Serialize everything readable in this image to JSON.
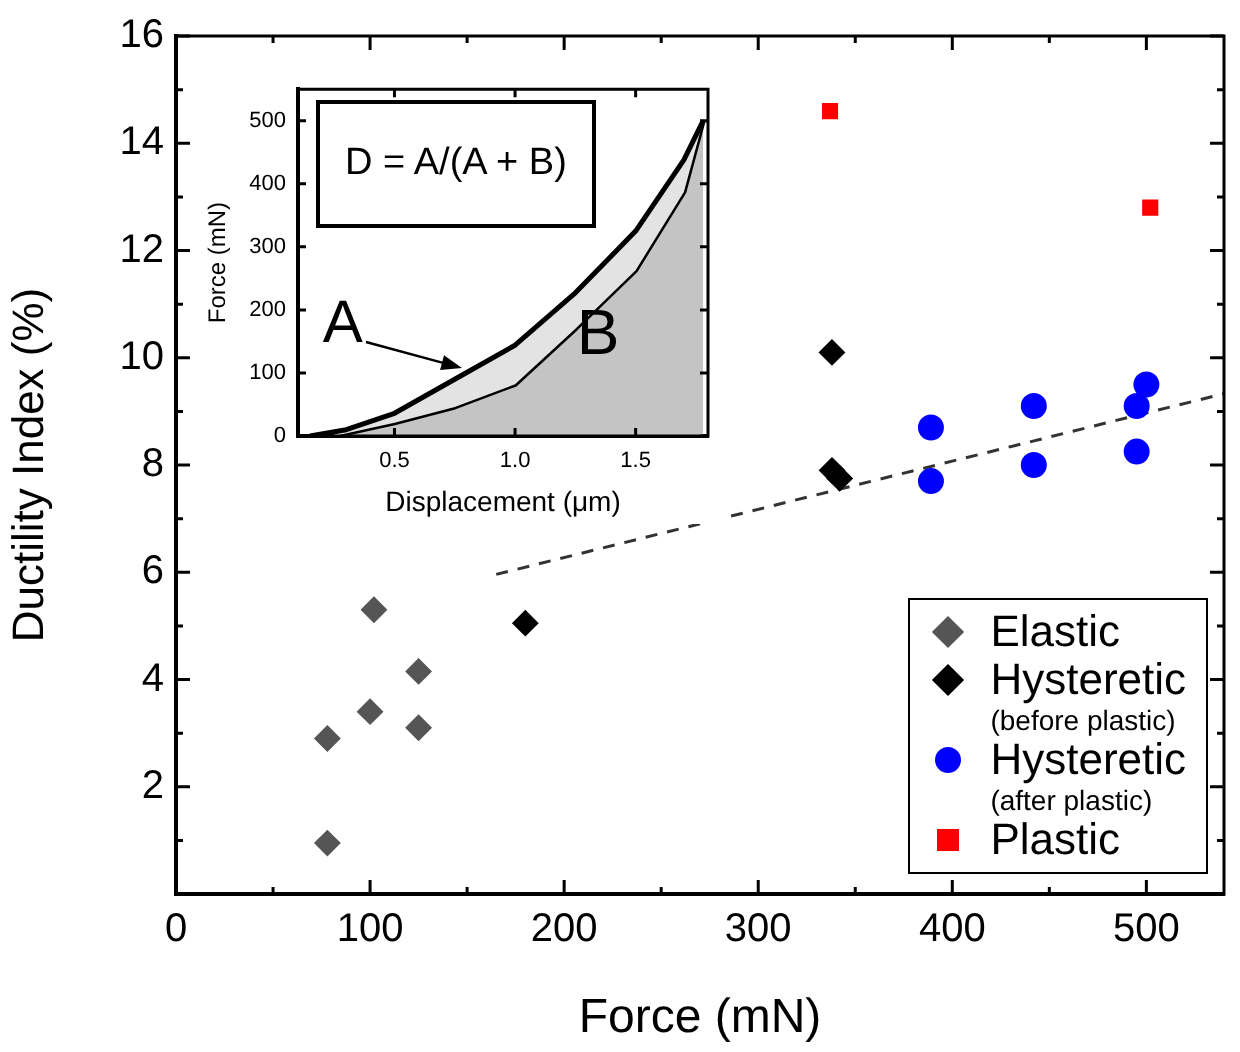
{
  "chart_data": [
    {
      "type": "scatter",
      "xlabel": "Force (mN)",
      "ylabel": "Ductility Index (%)",
      "xlim": [
        0,
        540
      ],
      "ylim": [
        0,
        16
      ],
      "xticks": [
        0,
        {
          "value": 50,
          "label": null
        },
        100,
        {
          "value": 150,
          "label": null
        },
        200,
        {
          "value": 250,
          "label": null
        },
        300,
        {
          "value": 350,
          "label": null
        },
        400,
        {
          "value": 450,
          "label": null
        },
        500
      ],
      "yticks": [
        {
          "value": 1,
          "label": null
        },
        2,
        {
          "value": 3,
          "label": null
        },
        4,
        {
          "value": 5,
          "label": null
        },
        6,
        {
          "value": 7,
          "label": null
        },
        8,
        {
          "value": 9,
          "label": null
        },
        10,
        {
          "value": 11,
          "label": null
        },
        12,
        {
          "value": 13,
          "label": null
        },
        14,
        {
          "value": 15,
          "label": null
        },
        16
      ],
      "grid": false,
      "legend": "bottom right",
      "series": [
        {
          "name": "Elastic",
          "color": "#555555",
          "marker": "diamond",
          "x": [
            78,
            78,
            100,
            102,
            125,
            125
          ],
          "values": [
            2.9,
            0.95,
            3.4,
            5.3,
            4.15,
            3.1
          ]
        },
        {
          "name": "Hysteretic (before plastic)",
          "color": "#000000",
          "marker": "diamond",
          "x": [
            180,
            338,
            338,
            342
          ],
          "values": [
            5.05,
            10.1,
            7.9,
            7.75
          ]
        },
        {
          "name": "Hysteretic (after plastic)",
          "color": "#0000ff",
          "marker": "circle",
          "x": [
            389,
            389,
            442,
            442,
            495,
            495,
            500
          ],
          "values": [
            8.7,
            7.7,
            9.1,
            8.0,
            9.1,
            8.25,
            9.5
          ]
        },
        {
          "name": "Plastic",
          "color": "#ff0000",
          "marker": "square",
          "x": [
            337,
            502
          ],
          "values": [
            14.6,
            12.8
          ]
        },
        {
          "type": "line",
          "color": "#333333",
          "line_style": "dashed",
          "marker": "none",
          "x": [
            165,
            540
          ],
          "values": [
            5.96,
            9.33
          ]
        }
      ]
    },
    {
      "type": "area",
      "xlabel": "Displacement (μm)",
      "ylabel": "Force (mN)",
      "xlim": [
        0.1,
        1.8
      ],
      "ylim": [
        0,
        550
      ],
      "xticks": [
        0.5,
        {
          "value": 1,
          "label": "1.0"
        },
        1.5
      ],
      "yticks": [
        0,
        100,
        200,
        300,
        400,
        500
      ],
      "grid": false,
      "series": [
        {
          "color": "#e3e3e3",
          "x": [
            0.15,
            0.3,
            0.5,
            0.75,
            1.0,
            1.25,
            1.5,
            1.7,
            1.78
          ],
          "values": [
            0,
            10,
            36,
            90,
            144,
            227,
            325,
            438,
            500
          ]
        },
        {
          "color": "#c4c4c4",
          "x": [
            0.25,
            0.5,
            0.75,
            1.0,
            1.25,
            1.5,
            1.7,
            1.78
          ],
          "values": [
            0,
            21,
            46,
            82,
            170,
            263,
            387,
            500
          ]
        }
      ],
      "annotations": [
        "D = A/(A + B)",
        {
          "text": "A",
          "x": 0.8,
          "y": 105
        },
        "B"
      ]
    }
  ]
}
